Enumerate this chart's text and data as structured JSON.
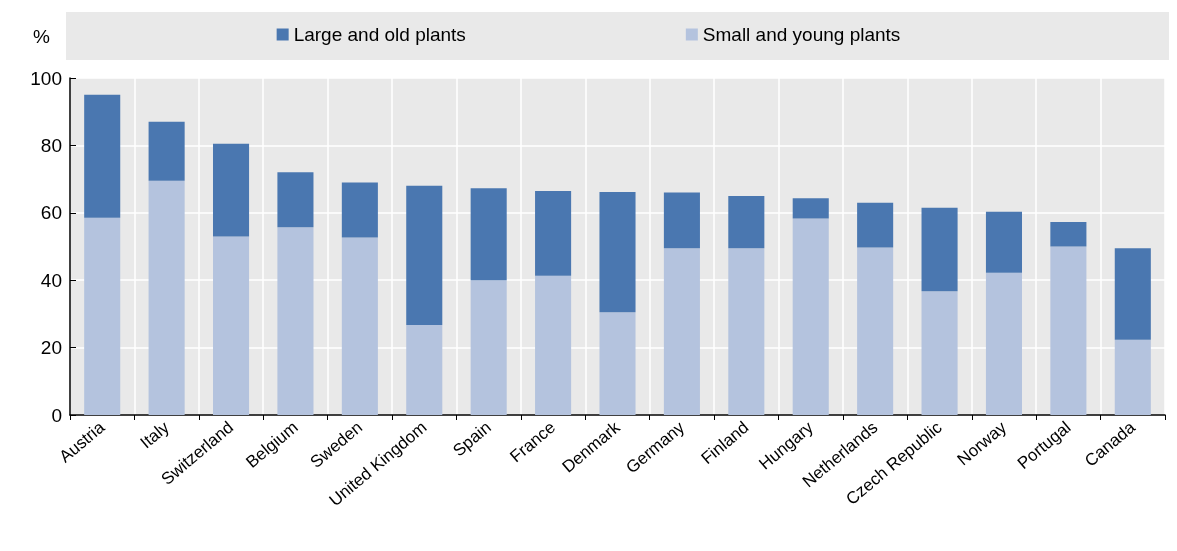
{
  "chart_data": {
    "type": "bar",
    "ylabel": "%",
    "categories": [
      "Austria",
      "Italy",
      "Switzerland",
      "Belgium",
      "Sweden",
      "United Kingdom",
      "Spain",
      "France",
      "Denmark",
      "Germany",
      "Finland",
      "Hungary",
      "Netherlands",
      "Czech Republic",
      "Norway",
      "Portugal",
      "Canada"
    ],
    "series": [
      {
        "name": "Small and young plants",
        "color": "#b4c3de",
        "values": [
          58.5,
          69.5,
          53,
          55.7,
          52.7,
          26.7,
          40,
          41.3,
          30.5,
          49.5,
          49.5,
          58.3,
          49.7,
          36.7,
          42.2,
          50,
          22.3
        ]
      },
      {
        "name": "Large and old plants",
        "color": "#4a77b0",
        "values": [
          36.5,
          17.5,
          27.5,
          16.3,
          16.3,
          41.3,
          27.3,
          25.2,
          35.7,
          16.5,
          15.5,
          6,
          13.3,
          24.8,
          18.1,
          7.3,
          27.2
        ]
      }
    ],
    "stacked": true,
    "ylim": [
      0,
      100
    ],
    "yticks": [
      0,
      20,
      40,
      60,
      80,
      100
    ],
    "grid": true,
    "legend": "top"
  }
}
